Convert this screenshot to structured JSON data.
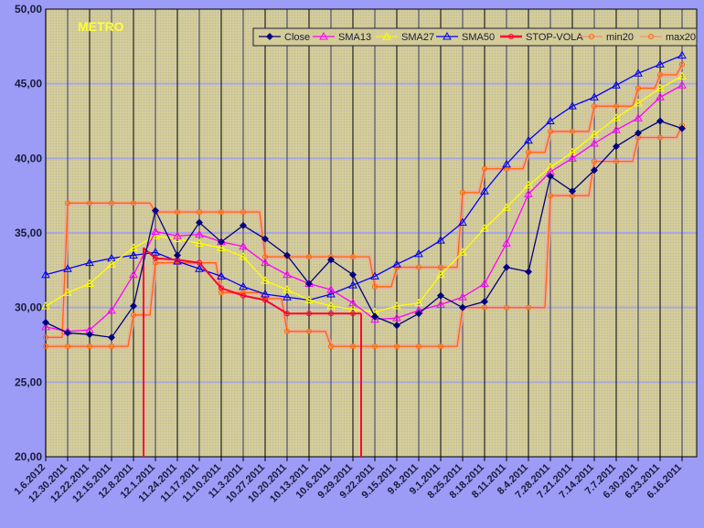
{
  "chart_data": {
    "type": "line",
    "title": "METRO",
    "xlabel": "",
    "ylabel": "",
    "ylim": [
      20,
      50
    ],
    "yticks": [
      "20,00",
      "25,00",
      "30,00",
      "35,00",
      "40,00",
      "45,00",
      "50,00"
    ],
    "grid": true,
    "legend": "top-right",
    "categories": [
      "1.6.2012",
      "12.30.2011",
      "12.22.2011",
      "12.15.2011",
      "12.8.2011",
      "12.1.2011",
      "11.24.2011",
      "11.17.2011",
      "11.10.2011",
      "11.3.2011",
      "10.27.2011",
      "10.20.2011",
      "10.13.2011",
      "10.6.2011",
      "9.29.2011",
      "9.22.2011",
      "9.15.2011",
      "9.8.2011",
      "9.1.2011",
      "8.25.2011",
      "8.18.2011",
      "8.11.2011",
      "8.4.2011",
      "7.28.2011",
      "7.21.2011",
      "7.14.2011",
      "7.7.2011",
      "6.30.2011",
      "6.23.2011",
      "6.16.2011"
    ],
    "series": [
      {
        "name": "Close",
        "color": "#000080",
        "marker": "diamond",
        "values": [
          29.0,
          28.3,
          28.2,
          28.0,
          30.1,
          36.5,
          33.5,
          35.7,
          34.4,
          35.5,
          34.6,
          33.5,
          31.6,
          33.2,
          32.2,
          29.4,
          28.8,
          29.6,
          30.8,
          30.0,
          30.4,
          32.7,
          32.4,
          38.8,
          37.8,
          39.2,
          40.8,
          41.7,
          42.5,
          42.0
        ]
      },
      {
        "name": "SMA13",
        "color": "#ff00ff",
        "marker": "triangle",
        "values": [
          28.7,
          28.4,
          28.5,
          29.8,
          32.2,
          35.1,
          34.8,
          34.9,
          34.4,
          34.1,
          33.0,
          32.2,
          31.6,
          31.2,
          30.3,
          29.2,
          29.3,
          29.8,
          30.2,
          30.7,
          31.6,
          34.3,
          37.6,
          39.1,
          40.0,
          41.0,
          41.9,
          42.7,
          44.1,
          44.9
        ]
      },
      {
        "name": "SMA27",
        "color": "#ffff00",
        "marker": "triangle",
        "values": [
          30.1,
          31.0,
          31.6,
          32.9,
          34.0,
          34.8,
          34.6,
          34.3,
          34.0,
          33.4,
          31.8,
          31.2,
          30.5,
          30.1,
          29.9,
          29.7,
          30.1,
          30.3,
          32.2,
          33.7,
          35.3,
          36.7,
          38.2,
          39.4,
          40.4,
          41.6,
          42.7,
          43.7,
          44.7,
          45.5
        ]
      },
      {
        "name": "SMA50",
        "color": "#0000ff",
        "marker": "triangle",
        "values": [
          32.2,
          32.6,
          33.0,
          33.3,
          33.5,
          33.7,
          33.1,
          32.6,
          32.1,
          31.4,
          30.9,
          30.7,
          30.5,
          30.9,
          31.5,
          32.1,
          32.9,
          33.6,
          34.5,
          35.7,
          37.8,
          39.6,
          41.2,
          42.5,
          43.5,
          44.1,
          44.9,
          45.7,
          46.3,
          46.9
        ]
      },
      {
        "name": "STOP-VOLA",
        "color": "#ff0033",
        "marker": "circle",
        "values": [
          null,
          null,
          null,
          null,
          null,
          33.3,
          33.2,
          33.0,
          31.3,
          30.8,
          30.5,
          29.6,
          29.6,
          29.6,
          29.6,
          null,
          null,
          null,
          null,
          null,
          null,
          null,
          null,
          null,
          null,
          null,
          null,
          null,
          null,
          null
        ]
      },
      {
        "name": "min20",
        "color": "#ff6600",
        "marker": "circle",
        "values": [
          27.4,
          27.4,
          27.4,
          27.4,
          29.5,
          33.0,
          33.0,
          33.0,
          31.0,
          31.0,
          30.6,
          28.4,
          28.4,
          27.4,
          27.4,
          27.4,
          27.4,
          27.4,
          27.4,
          30.0,
          30.0,
          30.0,
          30.0,
          37.5,
          37.5,
          39.8,
          39.8,
          41.4,
          41.4,
          42.2
        ]
      },
      {
        "name": "max20",
        "color": "#ff6600",
        "marker": "circle",
        "values": [
          28.0,
          37.0,
          37.0,
          37.0,
          37.0,
          36.4,
          36.4,
          36.4,
          36.4,
          36.4,
          33.4,
          33.4,
          33.4,
          33.4,
          33.4,
          31.4,
          32.7,
          32.7,
          32.7,
          37.7,
          39.3,
          39.3,
          40.4,
          41.8,
          41.8,
          43.5,
          43.5,
          44.7,
          45.6,
          46.3
        ]
      }
    ]
  }
}
